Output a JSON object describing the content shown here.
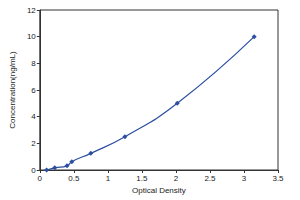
{
  "chart_data": {
    "type": "line",
    "x_label": "Optical Density",
    "y_label": "Concentration(ng/mL)",
    "x": [
      0.1,
      0.22,
      0.4,
      0.47,
      0.75,
      1.25,
      2.02,
      3.15
    ],
    "values": [
      0,
      0.16,
      0.31,
      0.625,
      1.25,
      2.5,
      5,
      10
    ],
    "color": "#2b4ea0",
    "marker": "diamond",
    "line_style": "solid",
    "xlim": [
      0,
      3.5
    ],
    "xticks": [
      0,
      0.5,
      1,
      1.5,
      2,
      2.5,
      3,
      3.5
    ],
    "ylim": [
      0,
      12
    ],
    "yticks": [
      0,
      2,
      4,
      6,
      8,
      10,
      12
    ],
    "grid": false
  }
}
